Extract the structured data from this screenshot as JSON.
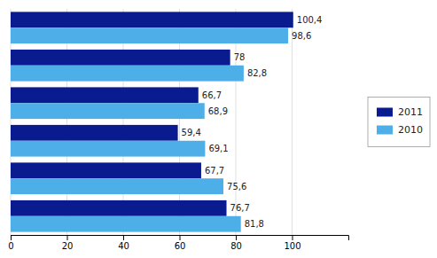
{
  "chart_data": {
    "type": "bar",
    "orientation": "horizontal",
    "categories": [
      null,
      null,
      null,
      null,
      null,
      null
    ],
    "series": [
      {
        "name": "2011",
        "color": "#0a1a8f",
        "values": [
          100.4,
          78.0,
          66.7,
          59.4,
          67.7,
          76.7
        ],
        "value_labels": [
          "100,4",
          "78",
          "66,7",
          "59,4",
          "67,7",
          "76,7"
        ]
      },
      {
        "name": "2010",
        "color": "#4daee8",
        "values": [
          98.6,
          82.8,
          68.9,
          69.1,
          75.6,
          81.8
        ],
        "value_labels": [
          "98,6",
          "82,8",
          "68,9",
          "69,1",
          "75,6",
          "81,8"
        ]
      }
    ],
    "xlim": [
      0,
      120
    ],
    "xticks": [
      0,
      20,
      40,
      60,
      80,
      100
    ],
    "grid": true,
    "data_labels": true,
    "legend": "right"
  }
}
